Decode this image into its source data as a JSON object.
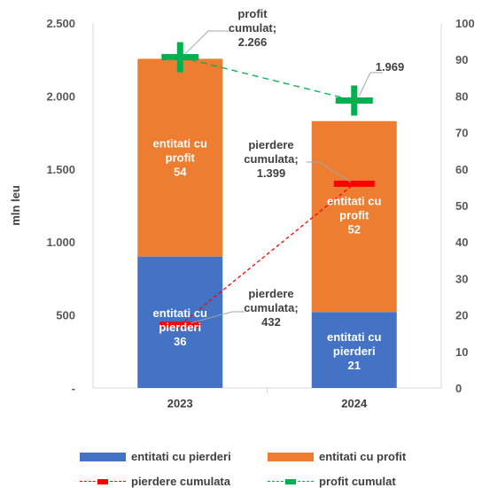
{
  "chart_data": {
    "type": "bar",
    "categories": [
      "2023",
      "2024"
    ],
    "ylabel": "mln leu",
    "ylim": [
      0,
      2500
    ],
    "y2lim": [
      0,
      100
    ],
    "y_ticks": [
      "-",
      "500",
      "1.000",
      "1.500",
      "2.000",
      "2.500"
    ],
    "y2_ticks": [
      "0",
      "10",
      "20",
      "30",
      "40",
      "50",
      "60",
      "70",
      "80",
      "90",
      "100"
    ],
    "series": [
      {
        "name": "entitati cu pierderi",
        "kind": "bar",
        "axis": "left",
        "values": [
          900,
          520
        ],
        "labels": [
          [
            "entitati cu",
            "pierderi",
            "36"
          ],
          [
            "entitati cu",
            "pierderi",
            "21"
          ]
        ]
      },
      {
        "name": "entitati cu profit",
        "kind": "bar",
        "axis": "left",
        "values": [
          1355,
          1308
        ],
        "labels": [
          [
            "entitati cu",
            "profit",
            "54"
          ],
          [
            "entitati cu",
            "profit",
            "52"
          ]
        ]
      },
      {
        "name": "pierdere cumulata",
        "kind": "line",
        "axis": "left",
        "values": [
          432,
          1399
        ],
        "labels": [
          [
            "pierdere",
            "cumulata;",
            "432"
          ],
          [
            "pierdere",
            "cumulata;",
            "1.399"
          ]
        ]
      },
      {
        "name": "profit cumulat",
        "kind": "line",
        "axis": "left",
        "values": [
          2266,
          1969
        ],
        "labels": [
          [
            "profit",
            "cumulat;",
            "2.266"
          ],
          [
            "1.969"
          ]
        ]
      }
    ],
    "colors": {
      "losses_bar": "#4472C4",
      "profit_bar": "#ED7D31",
      "loss_line": "#FF0000",
      "profit_line": "#00B050",
      "grid": "#D9D9D9",
      "text": "#404040"
    },
    "grid": false,
    "legend": "bottom"
  }
}
